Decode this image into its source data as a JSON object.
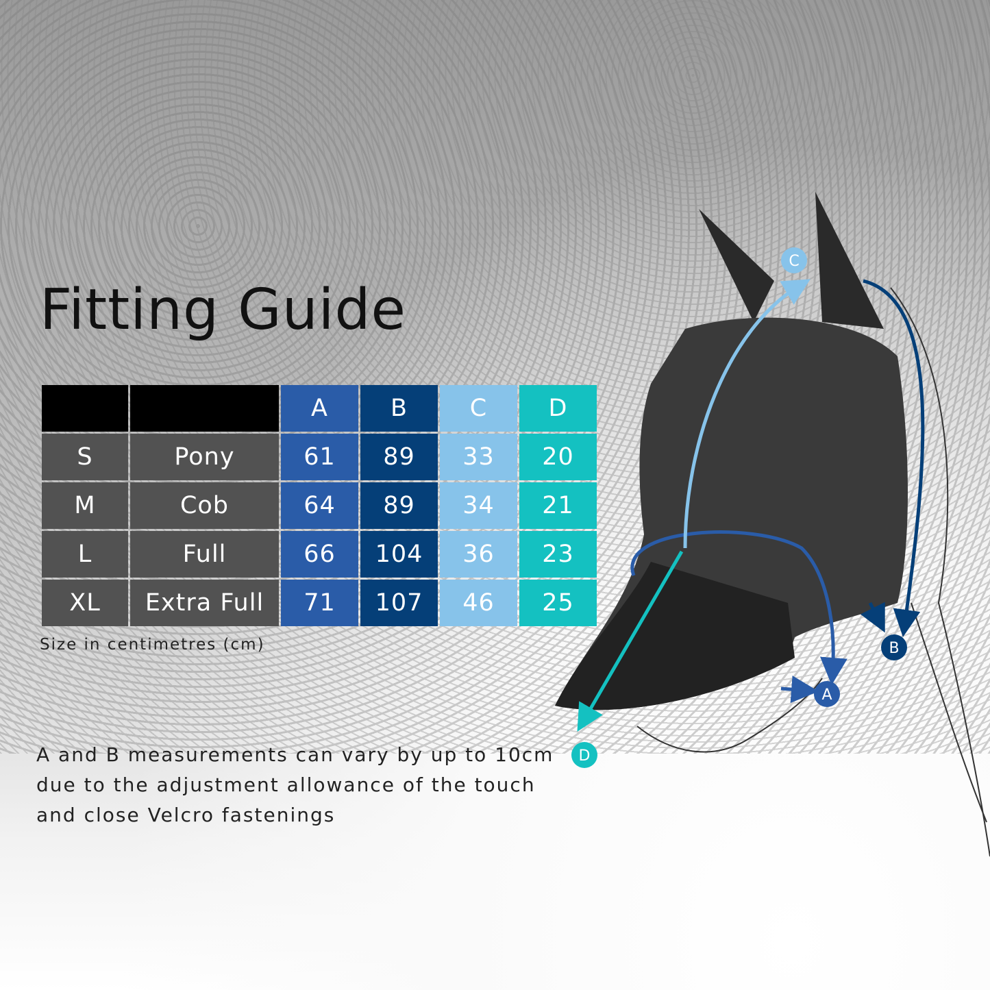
{
  "title": "Fitting Guide",
  "table": {
    "headers": [
      "",
      "",
      "A",
      "B",
      "C",
      "D"
    ],
    "rows": [
      {
        "size": "S",
        "type": "Pony",
        "A": "61",
        "B": "89",
        "C": "33",
        "D": "20"
      },
      {
        "size": "M",
        "type": "Cob",
        "A": "64",
        "B": "89",
        "C": "34",
        "D": "21"
      },
      {
        "size": "L",
        "type": "Full",
        "A": "66",
        "B": "104",
        "C": "36",
        "D": "23"
      },
      {
        "size": "XL",
        "type": "Extra Full",
        "A": "71",
        "B": "107",
        "C": "46",
        "D": "25"
      }
    ]
  },
  "note": "Size in centimetres (cm)",
  "description": "A and B measurements can vary by up to 10cm due to the adjustment allowance of the touch and close Velcro fastenings",
  "markers": {
    "a": "A",
    "b": "B",
    "c": "C",
    "d": "D"
  },
  "colors": {
    "A": "#2a5ca8",
    "B": "#053f78",
    "C": "#87c3ea",
    "D": "#14c1c1",
    "label_cells": "#525252",
    "header_black": "#000000"
  }
}
